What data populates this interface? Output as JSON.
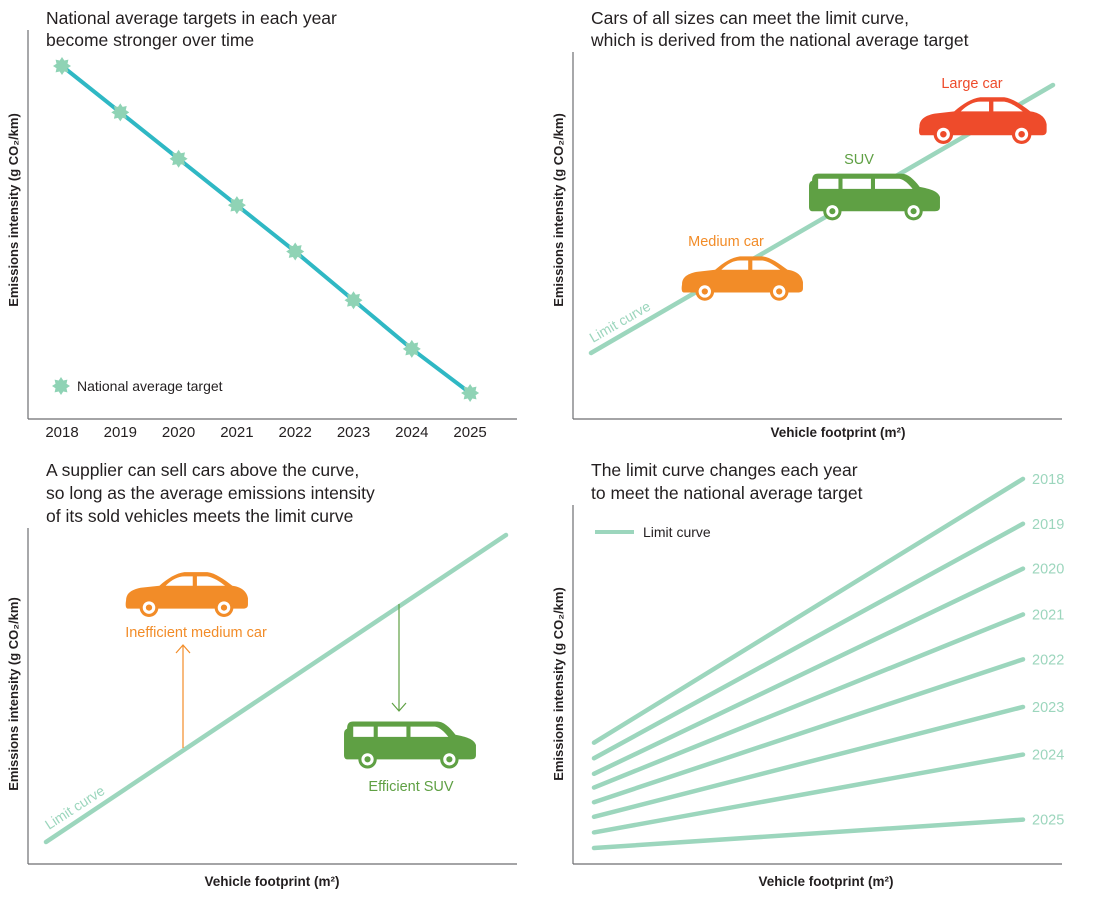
{
  "colors": {
    "target_line": "#2fb8c4",
    "target_marker": "#8fd3b5",
    "limit_curve": "#9cd6bd",
    "large_car": "#ee4b2b",
    "suv": "#5fa044",
    "medium_car": "#f28c28",
    "axis": "#6d6e71",
    "text": "#231f20"
  },
  "chart_data": [
    {
      "type": "line",
      "title_lines": [
        "National average targets in each year",
        "become stronger over time"
      ],
      "ylabel": "Emissions intensity (g CO₂/km)",
      "xlabel": "",
      "categories": [
        "2018",
        "2019",
        "2020",
        "2021",
        "2022",
        "2023",
        "2024",
        "2025"
      ],
      "series": [
        {
          "name": "National average target",
          "values": [
            8,
            7,
            6,
            5,
            4,
            2.95,
            1.9,
            0.95
          ]
        }
      ],
      "ylim": [
        0,
        8.7
      ],
      "legend_position": "bottom-left",
      "grid": false
    },
    {
      "type": "line",
      "title_lines": [
        "Cars of all sizes can meet the limit curve,",
        "which is derived from the national average target"
      ],
      "ylabel": "Emissions intensity (g CO₂/km)",
      "xlabel": "Vehicle footprint (m²)",
      "curve_label": "Limit curve",
      "cars": [
        {
          "label": "Medium car",
          "icon": "sedan-icon",
          "color_key": "medium_car"
        },
        {
          "label": "SUV",
          "icon": "suv-icon",
          "color_key": "suv"
        },
        {
          "label": "Large car",
          "icon": "sedan-icon",
          "color_key": "large_car"
        }
      ]
    },
    {
      "type": "line",
      "title_lines": [
        "A supplier can sell cars above the curve,",
        "so long as the average emissions intensity",
        "of its sold vehicles meets the limit curve"
      ],
      "ylabel": "Emissions intensity (g CO₂/km)",
      "xlabel": "Vehicle footprint (m²)",
      "curve_label": "Limit curve",
      "cars": [
        {
          "label": "Inefficient medium car",
          "icon": "sedan-icon",
          "color_key": "medium_car",
          "direction": "above"
        },
        {
          "label": "Efficient SUV",
          "icon": "suv-icon",
          "color_key": "suv",
          "direction": "below"
        }
      ]
    },
    {
      "type": "line",
      "title_lines": [
        "The limit curve changes each year",
        "to meet the national average target"
      ],
      "ylabel": "Emissions intensity (g CO₂/km)",
      "xlabel": "Vehicle footprint (m²)",
      "legend": "Limit curve",
      "series": [
        {
          "name": "2018",
          "y_start": 115,
          "y_end": 403
        },
        {
          "name": "2019",
          "y_start": 98,
          "y_end": 354
        },
        {
          "name": "2020",
          "y_start": 81,
          "y_end": 305
        },
        {
          "name": "2021",
          "y_start": 66,
          "y_end": 255
        },
        {
          "name": "2022",
          "y_start": 50,
          "y_end": 206
        },
        {
          "name": "2023",
          "y_start": 34,
          "y_end": 154
        },
        {
          "name": "2024",
          "y_start": 17,
          "y_end": 102
        },
        {
          "name": "2025",
          "y_start": 0,
          "y_end": 31
        }
      ],
      "ylim": [
        0,
        440
      ]
    }
  ]
}
